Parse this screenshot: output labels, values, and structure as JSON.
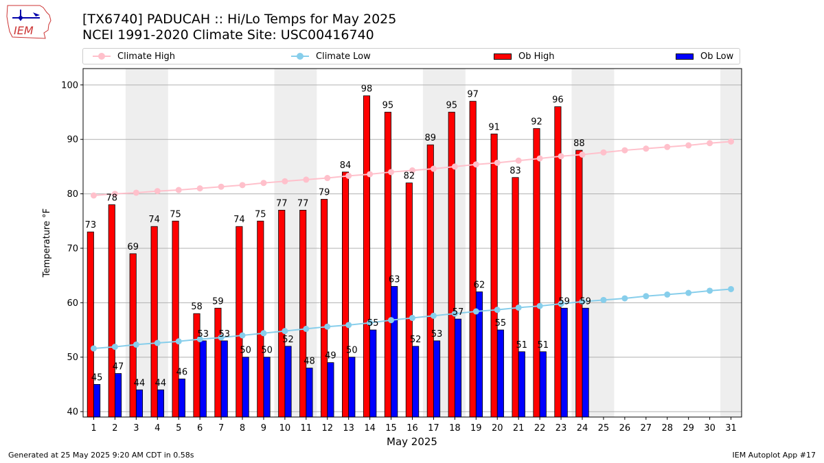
{
  "header": {
    "line1": "[TX6740] PADUCAH :: Hi/Lo Temps for May 2025",
    "line2": "NCEI 1991-2020 Climate Site: USC00416740"
  },
  "logo": {
    "text": "IEM"
  },
  "legend": {
    "climate_high": "Climate High",
    "climate_low": "Climate Low",
    "ob_high": "Ob High",
    "ob_low": "Ob Low"
  },
  "colors": {
    "climate_high": "#ffc0cb",
    "climate_low": "#87ceeb",
    "ob_high": "#ff0000",
    "ob_low": "#0000ff",
    "weekend_band": "#eeeeee",
    "grid": "#b0b0b0"
  },
  "footer": {
    "generated": "Generated at 25 May 2025 9:20 AM CDT in 0.58s",
    "app": "IEM Autoplot App #17"
  },
  "chart_data": {
    "type": "bar",
    "xlabel": "May 2025",
    "ylabel": "Temperature °F",
    "ylim": [
      39,
      103
    ],
    "yticks": [
      40,
      50,
      60,
      70,
      80,
      90,
      100
    ],
    "grid": true,
    "legend_position": "top",
    "days": [
      1,
      2,
      3,
      4,
      5,
      6,
      7,
      8,
      9,
      10,
      11,
      12,
      13,
      14,
      15,
      16,
      17,
      18,
      19,
      20,
      21,
      22,
      23,
      24,
      25,
      26,
      27,
      28,
      29,
      30,
      31
    ],
    "weekend_bands": [
      [
        3,
        4
      ],
      [
        10,
        11
      ],
      [
        17,
        18
      ],
      [
        24,
        25
      ],
      [
        31,
        31
      ]
    ],
    "series": [
      {
        "name": "Ob High",
        "type": "bar",
        "values": [
          73,
          78,
          69,
          74,
          75,
          58,
          59,
          74,
          75,
          77,
          77,
          79,
          84,
          98,
          95,
          82,
          89,
          95,
          97,
          91,
          83,
          92,
          96,
          88
        ]
      },
      {
        "name": "Ob Low",
        "type": "bar",
        "values": [
          45,
          47,
          44,
          44,
          46,
          53,
          53,
          50,
          50,
          52,
          48,
          49,
          50,
          55,
          63,
          52,
          53,
          57,
          62,
          55,
          51,
          51,
          59,
          59
        ]
      },
      {
        "name": "Climate High",
        "type": "line",
        "values": [
          79.7,
          80.0,
          80.2,
          80.5,
          80.7,
          81.0,
          81.3,
          81.6,
          82.0,
          82.3,
          82.6,
          82.9,
          83.3,
          83.6,
          84.0,
          84.3,
          84.6,
          85.0,
          85.4,
          85.7,
          86.1,
          86.5,
          86.9,
          87.2,
          87.6,
          88.0,
          88.3,
          88.6,
          88.9,
          89.3,
          89.6
        ]
      },
      {
        "name": "Climate Low",
        "type": "line",
        "values": [
          51.6,
          51.9,
          52.3,
          52.6,
          52.9,
          53.3,
          53.6,
          54.0,
          54.4,
          54.8,
          55.2,
          55.6,
          55.9,
          56.3,
          56.8,
          57.2,
          57.6,
          58.0,
          58.4,
          58.7,
          59.1,
          59.4,
          59.8,
          60.2,
          60.5,
          60.8,
          61.2,
          61.5,
          61.8,
          62.2,
          62.5
        ]
      }
    ]
  }
}
